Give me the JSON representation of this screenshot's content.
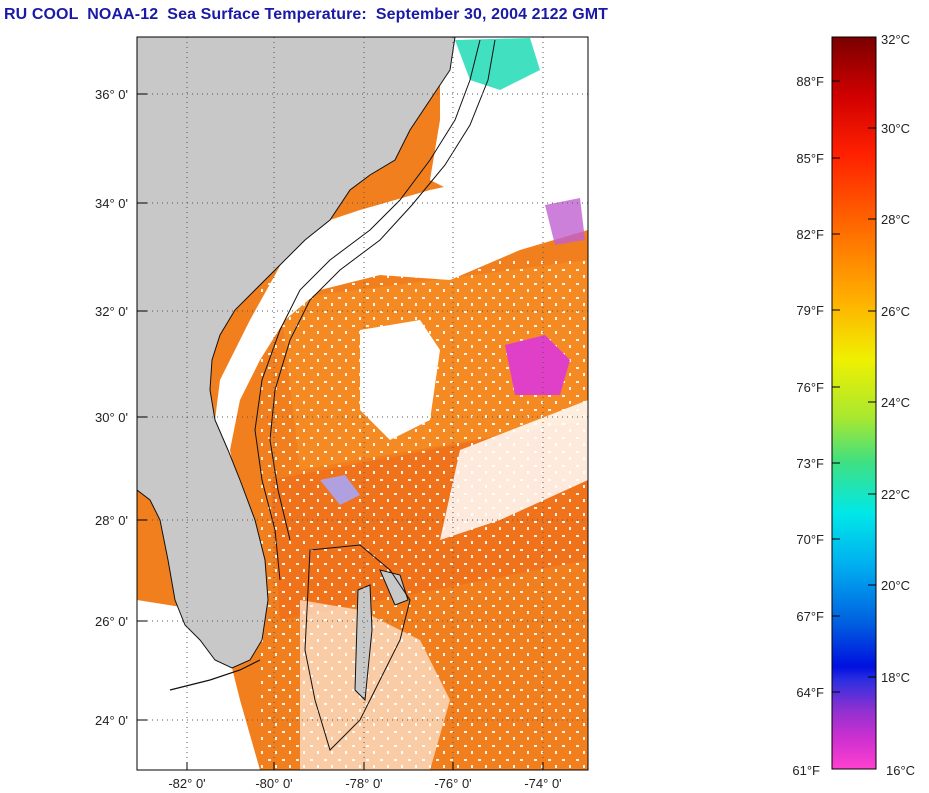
{
  "title": "RU COOL  NOAA-12  Sea Surface Temperature:  September 30, 2004 2122 GMT",
  "map": {
    "lat_labels": [
      {
        "text": "36° 0'",
        "lat": 36
      },
      {
        "text": "34° 0'",
        "lat": 34
      },
      {
        "text": "32° 0'",
        "lat": 32
      },
      {
        "text": "30° 0'",
        "lat": 30
      },
      {
        "text": "28° 0'",
        "lat": 28
      },
      {
        "text": "26° 0'",
        "lat": 26
      },
      {
        "text": "24° 0'",
        "lat": 24
      }
    ],
    "lon_labels": [
      {
        "text": "-82° 0'",
        "lon": -82
      },
      {
        "text": "-80° 0'",
        "lon": -80
      },
      {
        "text": "-78° 0'",
        "lon": -78
      },
      {
        "text": "-76° 0'",
        "lon": -76
      },
      {
        "text": "-74° 0'",
        "lon": -74
      }
    ],
    "lat_range": [
      23,
      37
    ],
    "lon_range": [
      -83,
      -73
    ],
    "colors": {
      "land": "#c8c8c8",
      "water_warm": "#ff8c1a",
      "cloud": "#ffffff"
    }
  },
  "colorbar": {
    "fahrenheit_labels": [
      {
        "text": "88°F",
        "value": 88
      },
      {
        "text": "85°F",
        "value": 85
      },
      {
        "text": "82°F",
        "value": 82
      },
      {
        "text": "79°F",
        "value": 79
      },
      {
        "text": "76°F",
        "value": 76
      },
      {
        "text": "73°F",
        "value": 73
      },
      {
        "text": "70°F",
        "value": 70
      },
      {
        "text": "67°F",
        "value": 67
      },
      {
        "text": "64°F",
        "value": 64
      },
      {
        "text": "61°F",
        "value": 61
      }
    ],
    "celsius_labels": [
      {
        "text": "32°C",
        "value": 32
      },
      {
        "text": "30°C",
        "value": 30
      },
      {
        "text": "28°C",
        "value": 28
      },
      {
        "text": "26°C",
        "value": 26
      },
      {
        "text": "24°C",
        "value": 24
      },
      {
        "text": "22°C",
        "value": 22
      },
      {
        "text": "20°C",
        "value": 20
      },
      {
        "text": "18°C",
        "value": 18
      },
      {
        "text": "16°C",
        "value": 16
      }
    ],
    "range_c": [
      16,
      32
    ]
  }
}
